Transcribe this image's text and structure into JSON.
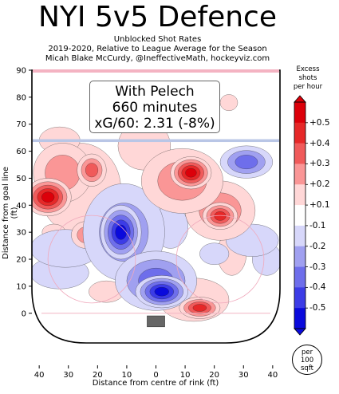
{
  "chart_data": {
    "type": "heatmap",
    "title": "NYI 5v5 Defence",
    "subtitle_lines": [
      "Unblocked Shot Rates",
      "2019-2020, Relative to League Average for the Season",
      "Micah Blake McCurdy, @IneffectiveMath, hockeyviz.com"
    ],
    "xlabel": "Distance from centre of rink (ft)",
    "ylabel": "Distance from goal line (ft)",
    "xlim": [
      -42.5,
      42.5
    ],
    "ylim": [
      -11,
      90
    ],
    "x_ticks": [
      "40",
      "30",
      "20",
      "10",
      "0",
      "10",
      "20",
      "30",
      "40"
    ],
    "y_ticks": [
      "0",
      "10",
      "20",
      "30",
      "40",
      "50",
      "60",
      "70",
      "80",
      "90"
    ],
    "annotation": [
      "With Pelech",
      "660 minutes",
      "xG/60: 2.31 (-8%)"
    ],
    "colorbar": {
      "title_lines": [
        "Excess",
        "shots",
        "per hour"
      ],
      "ticks": [
        "+0.5",
        "+0.4",
        "+0.3",
        "+0.2",
        "+0.1",
        "-0.1",
        "-0.2",
        "-0.3",
        "-0.4",
        "-0.5"
      ],
      "range": [
        -0.5,
        0.5
      ]
    },
    "unit_note": [
      "per",
      "100",
      "sqft"
    ],
    "blobs": [
      {
        "x": -37,
        "y": 43,
        "rx": 8,
        "ry": 7,
        "value": 0.5
      },
      {
        "x": -32,
        "y": 52,
        "rx": 10,
        "ry": 11,
        "value": 0.2
      },
      {
        "x": -22,
        "y": 53,
        "rx": 5,
        "ry": 6,
        "value": 0.35
      },
      {
        "x": -26,
        "y": 46,
        "rx": 14,
        "ry": 17,
        "value": 0.1
      },
      {
        "x": -33,
        "y": 64,
        "rx": 7,
        "ry": 5,
        "value": 0.15
      },
      {
        "x": 12,
        "y": 52,
        "rx": 7,
        "ry": 6,
        "value": 0.5
      },
      {
        "x": 9,
        "y": 49,
        "rx": 14,
        "ry": 12,
        "value": 0.22
      },
      {
        "x": 22,
        "y": 38,
        "rx": 12,
        "ry": 11,
        "value": 0.2
      },
      {
        "x": 22,
        "y": 36,
        "rx": 6,
        "ry": 5,
        "value": 0.4
      },
      {
        "x": 26,
        "y": 22,
        "rx": 5,
        "ry": 8,
        "value": 0.15
      },
      {
        "x": 25,
        "y": 78,
        "rx": 3,
        "ry": 3,
        "value": 0.15
      },
      {
        "x": -4,
        "y": 62,
        "rx": 9,
        "ry": 9,
        "value": 0.12
      },
      {
        "x": -24,
        "y": 29,
        "rx": 5,
        "ry": 5,
        "value": 0.2
      },
      {
        "x": -35,
        "y": 30,
        "rx": 4,
        "ry": 3,
        "value": 0.1
      },
      {
        "x": 15,
        "y": 2,
        "rx": 7,
        "ry": 4,
        "value": 0.4
      },
      {
        "x": 13,
        "y": 5,
        "rx": 12,
        "ry": 8,
        "value": 0.15
      },
      {
        "x": -17,
        "y": 8,
        "rx": 6,
        "ry": 4,
        "value": 0.1
      },
      {
        "x": 2,
        "y": 8,
        "rx": 9,
        "ry": 6,
        "value": -0.5
      },
      {
        "x": 0,
        "y": 12,
        "rx": 14,
        "ry": 11,
        "value": -0.25
      },
      {
        "x": -12,
        "y": 30,
        "rx": 7,
        "ry": 10,
        "value": -0.45
      },
      {
        "x": -11,
        "y": 30,
        "rx": 14,
        "ry": 18,
        "value": -0.2
      },
      {
        "x": -31,
        "y": 24,
        "rx": 12,
        "ry": 7,
        "value": -0.15
      },
      {
        "x": -33,
        "y": 15,
        "rx": 10,
        "ry": 6,
        "value": -0.1
      },
      {
        "x": 31,
        "y": 56,
        "rx": 9,
        "ry": 6,
        "value": -0.3
      },
      {
        "x": 33,
        "y": 27,
        "rx": 9,
        "ry": 6,
        "value": -0.15
      },
      {
        "x": 20,
        "y": 22,
        "rx": 5,
        "ry": 4,
        "value": -0.15
      },
      {
        "x": 5,
        "y": 32,
        "rx": 6,
        "ry": 8,
        "value": -0.12
      },
      {
        "x": 38,
        "y": 20,
        "rx": 5,
        "ry": 6,
        "value": -0.1
      }
    ]
  }
}
